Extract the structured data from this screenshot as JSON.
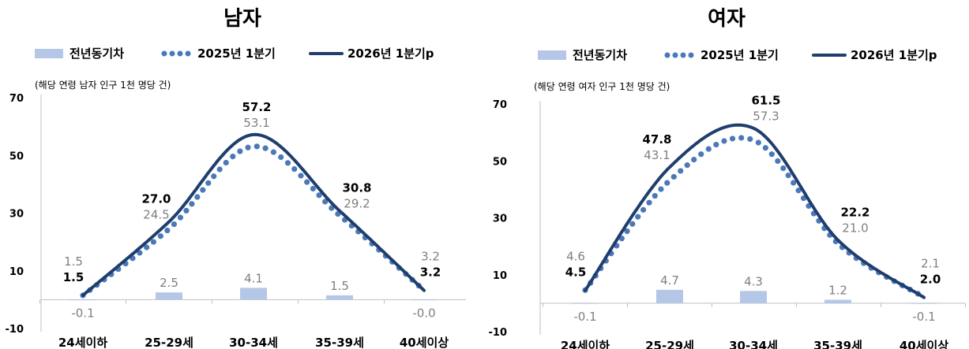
{
  "colors": {
    "line_2026": "#1f3e6e",
    "dots_2025": "#4a78b9",
    "bar": "#b4c7e7",
    "grey_label": "#7f7f7f",
    "axis": "#bfbfbf"
  },
  "legend": {
    "bar_label": "전년동기차",
    "dot_label": "2025년 1분기",
    "line_label": "2026년 1분기p"
  },
  "chart_data": [
    {
      "type": "line",
      "title": "남자",
      "unit_note": "(해당 연령 남자 인구 1천 명당 건)",
      "categories": [
        "24세이하",
        "25-29세",
        "30-34세",
        "35-39세",
        "40세이상"
      ],
      "ylim": [
        -10,
        70
      ],
      "yticks": [
        "70",
        "50",
        "30",
        "10",
        "-10"
      ],
      "series": [
        {
          "name": "2025년 1분기",
          "values": [
            1.5,
            24.5,
            53.1,
            29.2,
            3.2
          ],
          "labels": [
            "1.5",
            "24.5",
            "53.1",
            "29.2",
            "3.2"
          ]
        },
        {
          "name": "2026년 1분기p",
          "values": [
            1.5,
            27.0,
            57.2,
            30.8,
            3.2
          ],
          "labels": [
            "1.5",
            "27.0",
            "57.2",
            "30.8",
            "3.2"
          ]
        }
      ],
      "bars": {
        "name": "전년동기차",
        "values": [
          -0.1,
          2.5,
          4.1,
          1.5,
          -0.0
        ],
        "labels": [
          "-0.1",
          "2.5",
          "4.1",
          "1.5",
          "-0.0"
        ]
      },
      "legend_position": "top"
    },
    {
      "type": "line",
      "title": "여자",
      "unit_note": "(해당 연령 여자 인구 1천 명당 건)",
      "categories": [
        "24세이하",
        "25-29세",
        "30-34세",
        "35-39세",
        "40세이상"
      ],
      "ylim": [
        -10,
        70
      ],
      "yticks": [
        "70",
        "50",
        "30",
        "10",
        "-10"
      ],
      "series": [
        {
          "name": "2025년 1분기",
          "values": [
            4.6,
            43.1,
            57.3,
            21.0,
            2.1
          ],
          "labels": [
            "4.6",
            "43.1",
            "57.3",
            "21.0",
            "2.1"
          ]
        },
        {
          "name": "2026년 1분기p",
          "values": [
            4.5,
            47.8,
            61.5,
            22.2,
            2.0
          ],
          "labels": [
            "4.5",
            "47.8",
            "61.5",
            "22.2",
            "2.0"
          ]
        }
      ],
      "bars": {
        "name": "전년동기차",
        "values": [
          -0.1,
          4.7,
          4.3,
          1.2,
          -0.1
        ],
        "labels": [
          "-0.1",
          "4.7",
          "4.3",
          "1.2",
          "-0.1"
        ]
      },
      "legend_position": "top"
    }
  ]
}
